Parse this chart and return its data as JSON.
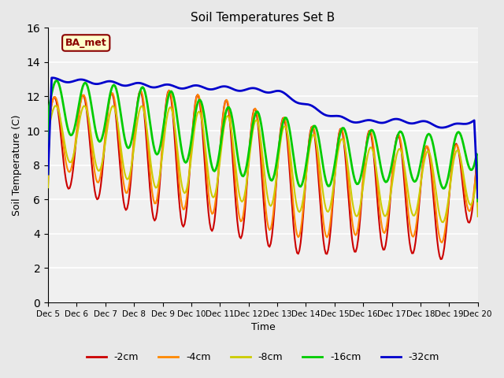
{
  "title": "Soil Temperatures Set B",
  "xlabel": "Time",
  "ylabel": "Soil Temperature (C)",
  "ylim": [
    0,
    16
  ],
  "yticks": [
    0,
    2,
    4,
    6,
    8,
    10,
    12,
    14,
    16
  ],
  "xtick_labels": [
    "Dec 5",
    "Dec 6",
    "Dec 7",
    "Dec 8",
    "Dec 9",
    "Dec 10",
    "Dec 11",
    "Dec 12",
    "Dec 13",
    "Dec 14",
    "Dec 15",
    "Dec 16",
    "Dec 17",
    "Dec 18",
    "Dec 19",
    "Dec 20"
  ],
  "xtick_positions": [
    0,
    1,
    2,
    3,
    4,
    5,
    6,
    7,
    8,
    9,
    10,
    11,
    12,
    13,
    14,
    15
  ],
  "series_colors": {
    "-2cm": "#cc0000",
    "-4cm": "#ff8800",
    "-8cm": "#cccc00",
    "-16cm": "#00cc00",
    "-32cm": "#0000cc"
  },
  "series_linewidths": {
    "-2cm": 1.5,
    "-4cm": 1.5,
    "-8cm": 1.5,
    "-16cm": 2.0,
    "-32cm": 2.0
  },
  "annotation_text": "BA_met",
  "annotation_color": "#8b0000",
  "plot_bg_color": "#f0f0f0",
  "fig_bg_color": "#e8e8e8",
  "n_points": 360,
  "days": 15
}
